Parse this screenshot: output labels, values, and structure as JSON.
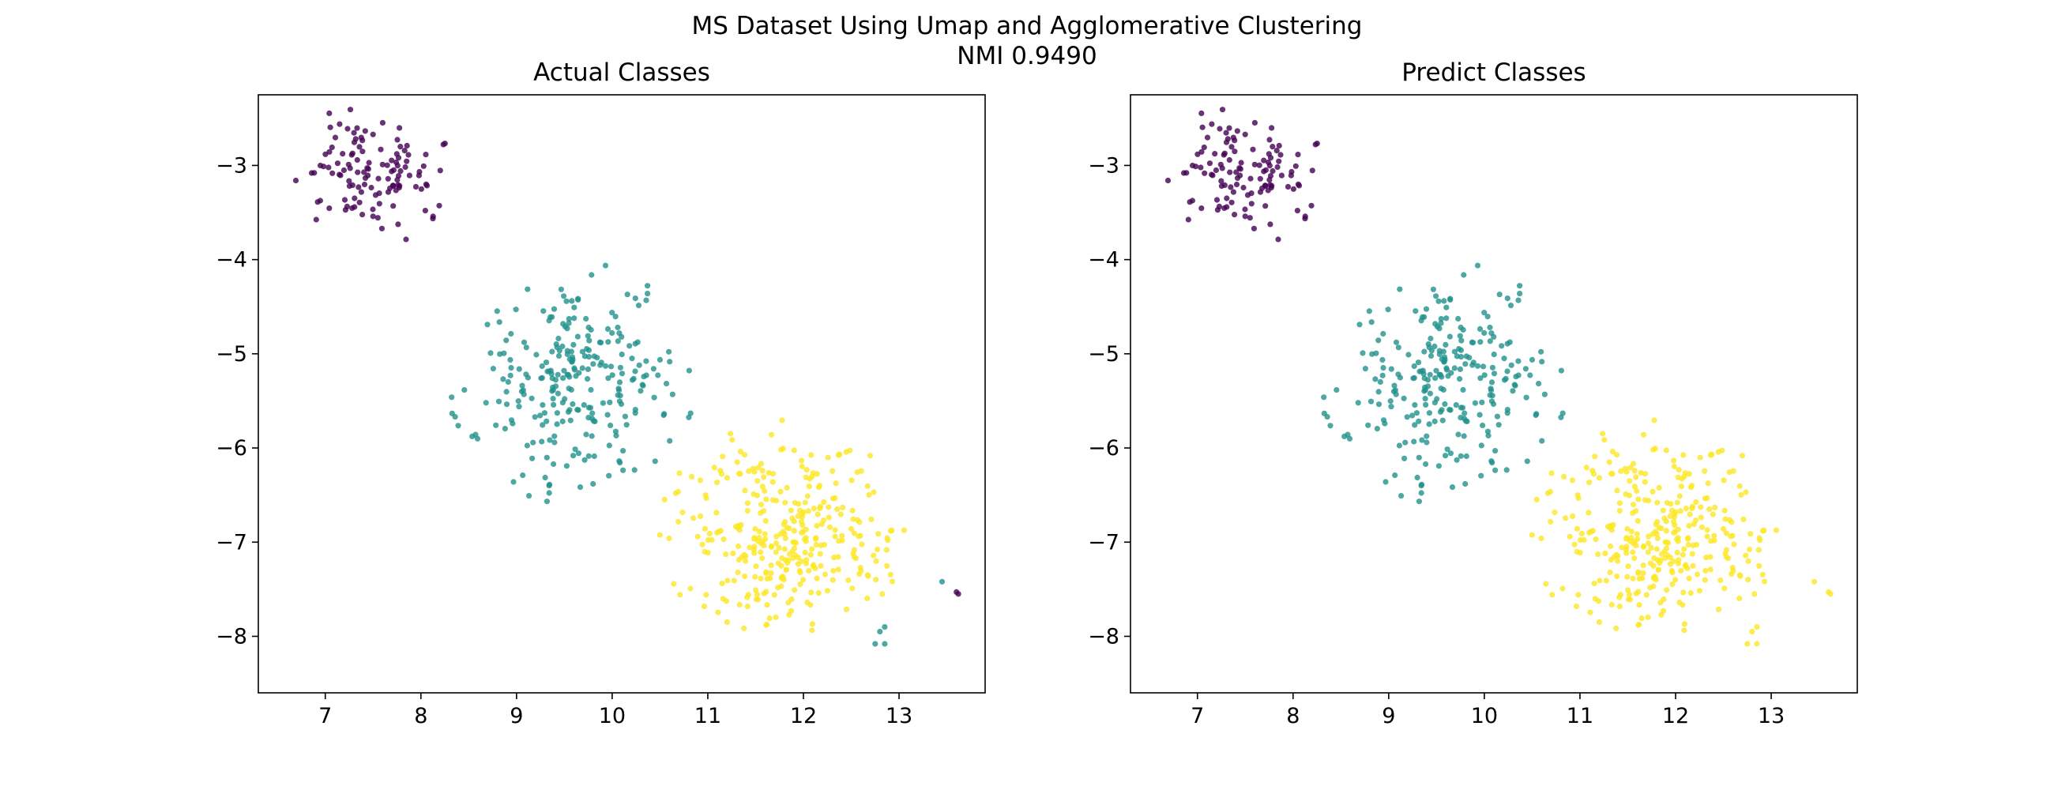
{
  "suptitle_lines": [
    "MS Dataset Using Umap and Agglomerative Clustering",
    "NMI 0.9490"
  ],
  "colors": {
    "class_0": "#440154",
    "class_1": "#21918c",
    "class_2": "#fde725"
  },
  "chart_data": [
    {
      "type": "scatter",
      "title": "Actual Classes",
      "xlabel": "",
      "ylabel": "",
      "xlim": [
        6.3,
        13.9
      ],
      "ylim": [
        -8.6,
        -2.25
      ],
      "xticks": [
        7,
        8,
        9,
        10,
        11,
        12,
        13
      ],
      "yticks": [
        -3,
        -4,
        -5,
        -6,
        -7,
        -8
      ],
      "grid": false,
      "legend": "none",
      "clusters": [
        {
          "label": 0,
          "color": "#440154",
          "center": [
            7.5,
            -3.1
          ],
          "spread": [
            0.35,
            0.33
          ],
          "count": 120
        },
        {
          "label": 1,
          "color": "#21918c",
          "center": [
            9.6,
            -5.3
          ],
          "spread": [
            0.55,
            0.55
          ],
          "count": 260
        },
        {
          "label": 2,
          "color": "#fde725",
          "center": [
            11.8,
            -6.9
          ],
          "spread": [
            0.55,
            0.5
          ],
          "count": 330
        }
      ],
      "outliers": [
        {
          "x": 13.6,
          "y": -7.53,
          "label": 0
        },
        {
          "x": 13.62,
          "y": -7.55,
          "label": 0
        },
        {
          "x": 13.45,
          "y": -7.42,
          "label": 1
        },
        {
          "x": 12.8,
          "y": -7.95,
          "label": 1
        },
        {
          "x": 12.85,
          "y": -8.08,
          "label": 1
        },
        {
          "x": 12.75,
          "y": -8.08,
          "label": 1
        },
        {
          "x": 12.85,
          "y": -7.9,
          "label": 1
        }
      ]
    },
    {
      "type": "scatter",
      "title": "Predict Classes",
      "xlabel": "",
      "ylabel": "",
      "xlim": [
        6.3,
        13.9
      ],
      "ylim": [
        -8.6,
        -2.25
      ],
      "xticks": [
        7,
        8,
        9,
        10,
        11,
        12,
        13
      ],
      "yticks": [
        -3,
        -4,
        -5,
        -6,
        -7,
        -8
      ],
      "grid": false,
      "legend": "none",
      "clusters": [
        {
          "label": 0,
          "color": "#440154",
          "center": [
            7.5,
            -3.1
          ],
          "spread": [
            0.35,
            0.33
          ],
          "count": 120
        },
        {
          "label": 1,
          "color": "#21918c",
          "center": [
            9.6,
            -5.3
          ],
          "spread": [
            0.55,
            0.55
          ],
          "count": 260
        },
        {
          "label": 2,
          "color": "#fde725",
          "center": [
            11.8,
            -6.9
          ],
          "spread": [
            0.55,
            0.5
          ],
          "count": 330
        }
      ],
      "outliers": [
        {
          "x": 13.6,
          "y": -7.53,
          "label": 2
        },
        {
          "x": 13.62,
          "y": -7.55,
          "label": 2
        },
        {
          "x": 13.45,
          "y": -7.42,
          "label": 2
        },
        {
          "x": 12.8,
          "y": -7.95,
          "label": 2
        },
        {
          "x": 12.85,
          "y": -8.08,
          "label": 2
        },
        {
          "x": 12.75,
          "y": -8.08,
          "label": 2
        },
        {
          "x": 12.85,
          "y": -7.9,
          "label": 2
        }
      ]
    }
  ]
}
